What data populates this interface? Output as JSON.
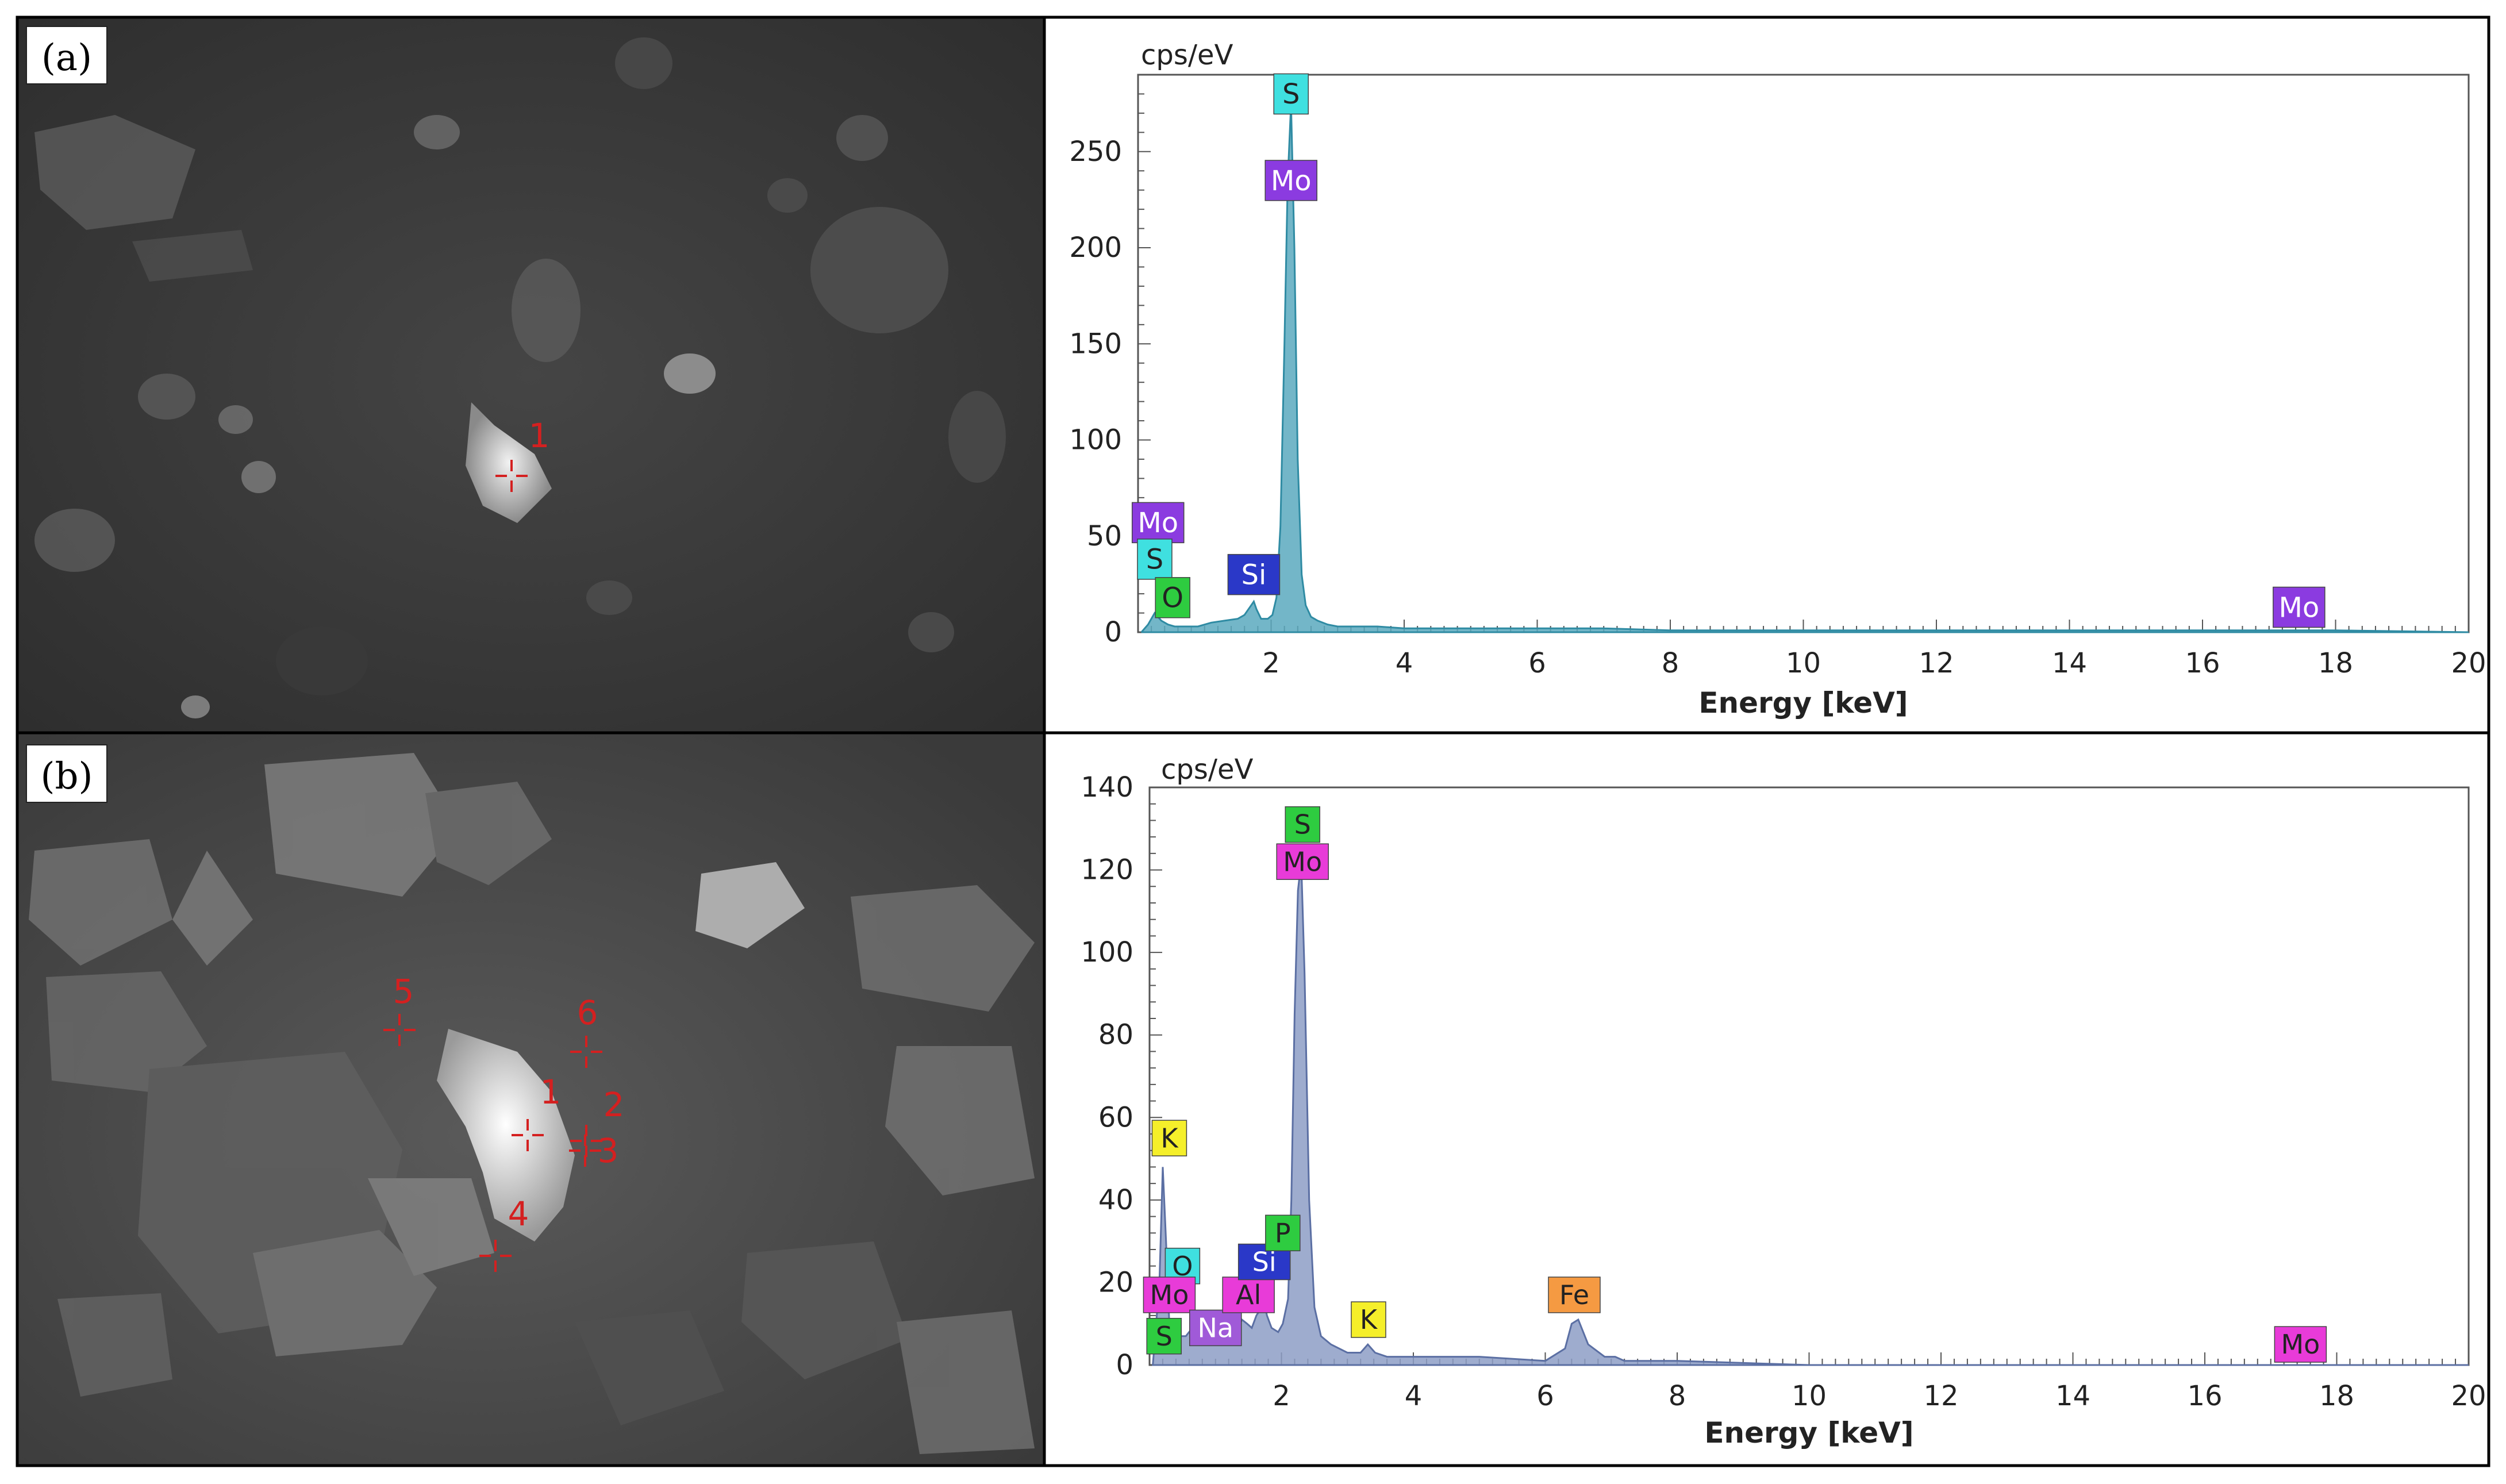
{
  "panels": [
    {
      "panel_label": "(a)",
      "markers": [
        {
          "label": "1"
        }
      ],
      "chart": {
        "type": "area",
        "yunit": "cps/eV",
        "xlabel": "Energy [keV]",
        "xlim": [
          0,
          20
        ],
        "ylim": [
          0,
          290
        ],
        "xticks": [
          "2",
          "4",
          "6",
          "8",
          "10",
          "12",
          "14",
          "16",
          "18",
          "20"
        ],
        "yticks": [
          "0",
          "50",
          "100",
          "150",
          "200",
          "250"
        ],
        "xtick_values": [
          2,
          4,
          6,
          8,
          10,
          12,
          14,
          16,
          18,
          20
        ],
        "ytick_values": [
          0,
          50,
          100,
          150,
          200,
          250
        ],
        "fill": "#5aa9be",
        "stroke": "#2f8ba3",
        "spectrum_x": [
          0.05,
          0.15,
          0.25,
          0.35,
          0.45,
          0.55,
          0.65,
          0.75,
          0.9,
          1.1,
          1.3,
          1.5,
          1.6,
          1.7,
          1.74,
          1.78,
          1.85,
          1.95,
          2.02,
          2.08,
          2.14,
          2.2,
          2.25,
          2.3,
          2.35,
          2.4,
          2.46,
          2.52,
          2.6,
          2.7,
          2.85,
          3.0,
          3.3,
          3.6,
          4.0,
          5.0,
          6.0,
          7.0,
          8.0,
          10.0,
          12.0,
          14.0,
          16.0,
          17.4,
          18.0,
          20.0
        ],
        "spectrum_y": [
          0,
          4,
          10,
          6,
          4,
          3,
          3,
          3,
          3,
          5,
          6,
          7,
          9,
          14,
          16,
          12,
          7,
          7,
          9,
          18,
          55,
          150,
          235,
          275,
          200,
          90,
          30,
          14,
          8,
          6,
          4,
          3,
          3,
          3,
          2,
          2,
          2,
          2,
          1,
          1,
          1,
          1,
          1,
          1,
          1,
          0
        ],
        "element_labels": [
          {
            "text": "S",
            "x": 2.3,
            "y": 280,
            "color": "#3fe0e0"
          },
          {
            "text": "Mo",
            "x": 2.3,
            "y": 235,
            "color": "#8b3be0"
          },
          {
            "text": "Mo",
            "x": 0.3,
            "y": 57,
            "color": "#8b3be0"
          },
          {
            "text": "S",
            "x": 0.25,
            "y": 38,
            "color": "#3fe0e0"
          },
          {
            "text": "O",
            "x": 0.52,
            "y": 18,
            "color": "#2ecc40"
          },
          {
            "text": "Si",
            "x": 1.74,
            "y": 30,
            "color": "#2a38c8"
          },
          {
            "text": "Mo",
            "x": 17.45,
            "y": 13,
            "color": "#8b3be0"
          }
        ]
      }
    },
    {
      "panel_label": "(b)",
      "markers": [
        {
          "label": "1"
        },
        {
          "label": "2"
        },
        {
          "label": "3"
        },
        {
          "label": "4"
        },
        {
          "label": "5"
        },
        {
          "label": "6"
        }
      ],
      "chart": {
        "type": "area",
        "yunit": "cps/eV",
        "xlabel": "Energy [keV]",
        "xlim": [
          0,
          20
        ],
        "ylim": [
          0,
          140
        ],
        "xticks": [
          "2",
          "4",
          "6",
          "8",
          "10",
          "12",
          "14",
          "16",
          "18",
          "20"
        ],
        "yticks": [
          "0",
          "20",
          "40",
          "60",
          "80",
          "100",
          "120",
          "140"
        ],
        "xtick_values": [
          2,
          4,
          6,
          8,
          10,
          12,
          14,
          16,
          18,
          20
        ],
        "ytick_values": [
          0,
          20,
          40,
          60,
          80,
          100,
          120,
          140
        ],
        "fill": "#8d9ec5",
        "stroke": "#5b6fa3",
        "spectrum_x": [
          0.05,
          0.15,
          0.2,
          0.25,
          0.3,
          0.38,
          0.45,
          0.55,
          0.65,
          0.75,
          0.85,
          0.95,
          1.05,
          1.15,
          1.3,
          1.4,
          1.48,
          1.55,
          1.62,
          1.7,
          1.74,
          1.78,
          1.85,
          1.95,
          2.02,
          2.1,
          2.15,
          2.2,
          2.25,
          2.3,
          2.35,
          2.42,
          2.5,
          2.6,
          2.75,
          3.0,
          3.2,
          3.31,
          3.42,
          3.6,
          4.0,
          5.0,
          6.0,
          6.3,
          6.4,
          6.5,
          6.65,
          6.9,
          7.06,
          7.2,
          7.5,
          8.0,
          10.0,
          12.0,
          14.0,
          16.0,
          17.4,
          18.0,
          20.0
        ],
        "spectrum_y": [
          0,
          20,
          48,
          30,
          10,
          8,
          7,
          7,
          9,
          6,
          5,
          6,
          9,
          8,
          7,
          11,
          10,
          9,
          12,
          14,
          15,
          12,
          9,
          8,
          10,
          16,
          40,
          85,
          115,
          122,
          95,
          40,
          14,
          7,
          5,
          3,
          3,
          5,
          3,
          2,
          2,
          2,
          1,
          4,
          10,
          11,
          5,
          2,
          2,
          1,
          1,
          1,
          0,
          0,
          0,
          0,
          0,
          0,
          0
        ],
        "element_labels": [
          {
            "text": "S",
            "x": 2.32,
            "y": 131,
            "color": "#2ecc40"
          },
          {
            "text": "Mo",
            "x": 2.32,
            "y": 122,
            "color": "#e83bd8"
          },
          {
            "text": "K",
            "x": 0.3,
            "y": 55,
            "color": "#f5ef2a"
          },
          {
            "text": "O",
            "x": 0.5,
            "y": 24,
            "color": "#3fe0e0"
          },
          {
            "text": "Mo",
            "x": 0.3,
            "y": 17,
            "color": "#e83bd8"
          },
          {
            "text": "S",
            "x": 0.22,
            "y": 7,
            "color": "#2ecc40"
          },
          {
            "text": "Na",
            "x": 1.0,
            "y": 9,
            "color": "#a05ad8"
          },
          {
            "text": "Al",
            "x": 1.5,
            "y": 17,
            "color": "#e83bd8"
          },
          {
            "text": "Si",
            "x": 1.74,
            "y": 25,
            "color": "#2a38c8"
          },
          {
            "text": "P",
            "x": 2.02,
            "y": 32,
            "color": "#2ecc40"
          },
          {
            "text": "K",
            "x": 3.32,
            "y": 11,
            "color": "#f5ef2a"
          },
          {
            "text": "Fe",
            "x": 6.44,
            "y": 17,
            "color": "#f59a42"
          },
          {
            "text": "Mo",
            "x": 17.45,
            "y": 5,
            "color": "#e83bd8"
          }
        ]
      }
    }
  ],
  "chart_data": [
    {
      "type": "area",
      "title": "",
      "xlabel": "Energy [keV]",
      "ylabel": "cps/eV",
      "xlim": [
        0,
        20
      ],
      "ylim": [
        0,
        290
      ],
      "annotations": [
        "S",
        "Mo",
        "Mo",
        "S",
        "O",
        "Si",
        "Mo"
      ],
      "peaks": [
        {
          "x": 2.3,
          "y": 275,
          "label": "S / Mo"
        },
        {
          "x": 1.74,
          "y": 16,
          "label": "Si"
        },
        {
          "x": 0.25,
          "y": 10,
          "label": "Mo / S / O"
        }
      ]
    },
    {
      "type": "area",
      "title": "",
      "xlabel": "Energy [keV]",
      "ylabel": "cps/eV",
      "xlim": [
        0,
        20
      ],
      "ylim": [
        0,
        140
      ],
      "annotations": [
        "S",
        "Mo",
        "K",
        "O",
        "Mo",
        "S",
        "Na",
        "Al",
        "Si",
        "P",
        "K",
        "Fe",
        "Mo"
      ],
      "peaks": [
        {
          "x": 2.3,
          "y": 122,
          "label": "S / Mo"
        },
        {
          "x": 0.2,
          "y": 48,
          "label": "K / O / Mo / S"
        },
        {
          "x": 1.74,
          "y": 15,
          "label": "Si / P"
        },
        {
          "x": 6.45,
          "y": 11,
          "label": "Fe"
        },
        {
          "x": 3.31,
          "y": 5,
          "label": "K"
        }
      ]
    }
  ]
}
